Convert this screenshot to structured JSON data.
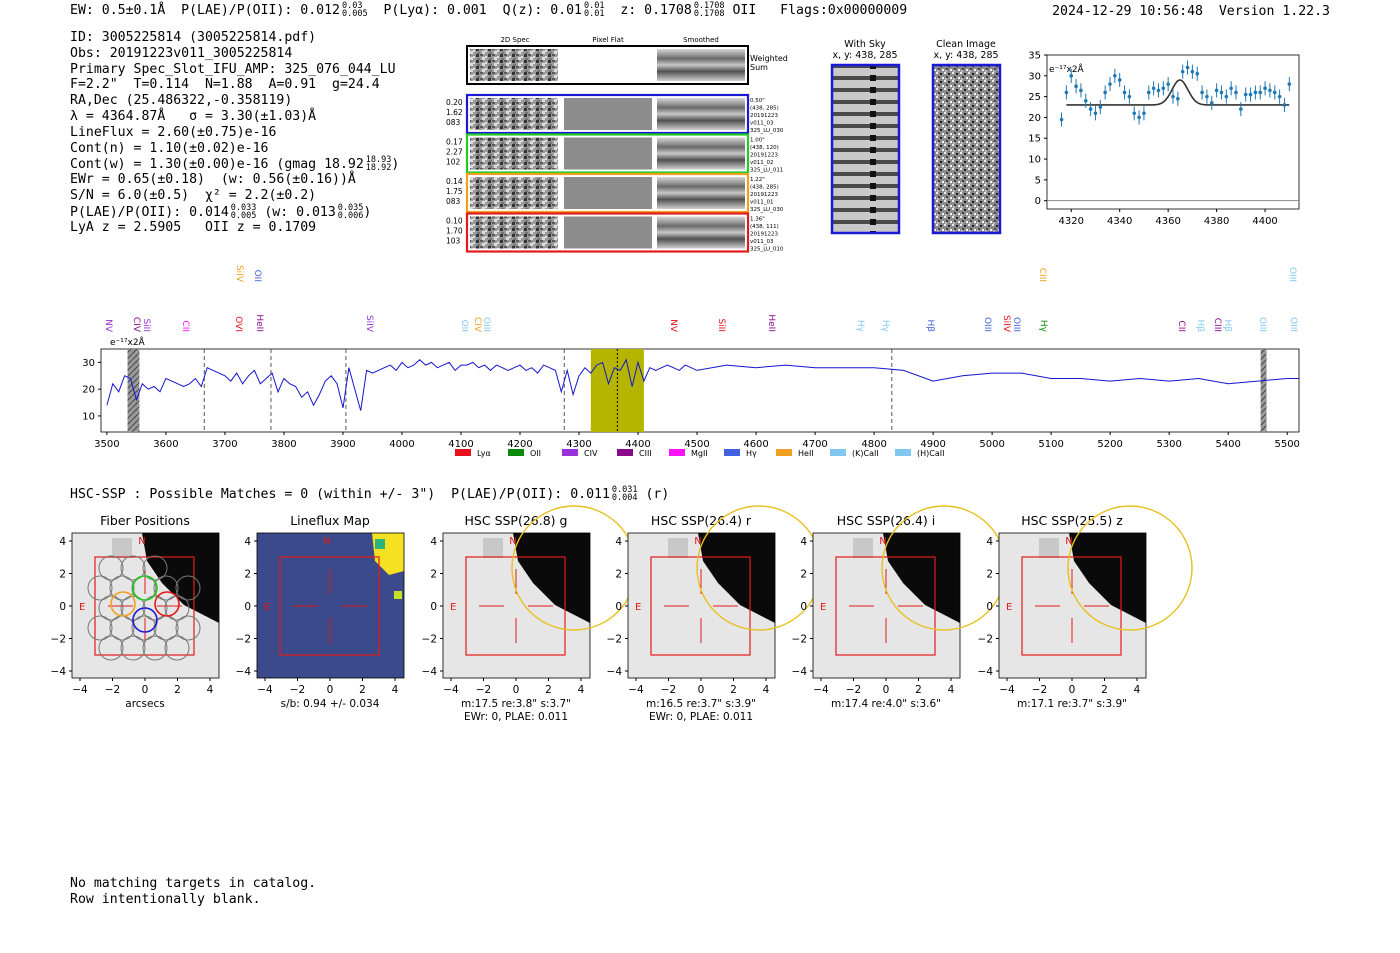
{
  "header": {
    "ew": "EW: 0.5±0.1Å",
    "plae_label": "P(LAE)/P(OII): 0.012",
    "plae_hi": "0.03",
    "plae_lo": "0.005",
    "plya": "P(Lyα): 0.001",
    "qz_label": "Q(z): 0.01",
    "qz_hi": "0.01",
    "qz_lo": "0.01",
    "z_label": "z: 0.1708",
    "z_hi": "0.1708",
    "z_lo": "0.1708",
    "z_line": "OII",
    "flags": "Flags:0x00000009",
    "timestamp": "2024-12-29 10:56:48",
    "version": "Version 1.22.3"
  },
  "info": {
    "id": "ID: 3005225814 (3005225814.pdf)",
    "obs": "Obs: 20191223v011_3005225814",
    "primary": "Primary Spec_Slot_IFU_AMP: 325_076_044_LU",
    "params": "F=2.2\"  T=0.114  N=1.88  A=0.91  g=24.4",
    "radec": "RA,Dec (25.486322,-0.358119)",
    "lambda": "λ = 4364.87Å   σ = 3.30(±1.03)Å",
    "lineflux": "LineFlux = 2.60(±0.75)e-16",
    "cont_n": "Cont(n) = 1.10(±0.02)e-16",
    "cont_w": "Cont(w) = 1.30(±0.00)e-16 (gmag 18.92",
    "gmag_hi": "18.93",
    "gmag_lo": "18.92",
    "cont_w_end": ")",
    "ewr": "EWr = 0.65(±0.18)  (w: 0.56(±0.16))Å",
    "sn": "S/N = 6.0(±0.5)  χ² = 2.2(±0.2)",
    "plae": "P(LAE)/P(OII): 0.014",
    "plae_hi": "0.033",
    "plae_lo": "0.005",
    "plae_w": " (w: 0.013",
    "plae_w_hi": "0.035",
    "plae_w_lo": "0.006",
    "plae_w_end": ")",
    "lya": "LyA z = 2.5905   OII z = 0.1709"
  },
  "cutouts": {
    "col_headers": [
      "2D Spec",
      "Pixel Flat",
      "Smoothed"
    ],
    "weighted_label": "Weighted\nSum",
    "rows": [
      {
        "color": "#1a1ad6",
        "left": [
          "0.20",
          "1.62",
          "083"
        ],
        "right": [
          "0.50\"",
          "(438, 285)",
          "20191223",
          "v011_03",
          "325_LU_030"
        ]
      },
      {
        "color": "#22cc22",
        "left": [
          "0.17",
          "2.27",
          "102"
        ],
        "right": [
          "1.00\"",
          "(438, 120)",
          "20191223",
          "v011_02",
          "325_LU_011"
        ]
      },
      {
        "color": "#f0a020",
        "left": [
          "0.14",
          "1.75",
          "083"
        ],
        "right": [
          "1.22\"",
          "(438, 285)",
          "20191223",
          "v011_01",
          "325_LU_030"
        ]
      },
      {
        "color": "#e21a1a",
        "left": [
          "0.10",
          "1.70",
          "103"
        ],
        "right": [
          "1.36\"",
          "(438, 111)",
          "20191223",
          "v011_03",
          "325_LU_010"
        ]
      }
    ],
    "with_sky_title": "With Sky",
    "with_sky_sub": "x, y: 438, 285",
    "clean_title": "Clean Image",
    "clean_sub": "x, y: 438, 285"
  },
  "fit_chart": {
    "units": "e⁻¹⁷x2Å",
    "x_ticks": [
      "4320",
      "4340",
      "4360",
      "4380",
      "4400"
    ],
    "y_ticks": [
      "0",
      "5",
      "10",
      "15",
      "20",
      "25",
      "30",
      "35"
    ]
  },
  "spectrum": {
    "units": "e⁻¹⁷x2Å",
    "x_ticks": [
      "3500",
      "3600",
      "3700",
      "3800",
      "3900",
      "4000",
      "4100",
      "4200",
      "4300",
      "4400",
      "4500",
      "4600",
      "4700",
      "4800",
      "4900",
      "5000",
      "5100",
      "5200",
      "5300",
      "5400",
      "5500"
    ],
    "y_ticks": [
      "10",
      "20",
      "30"
    ],
    "legend": [
      {
        "label": "Lyα",
        "color": "#e8101a"
      },
      {
        "label": "OII",
        "color": "#0a8a0a"
      },
      {
        "label": "CIV",
        "color": "#9b30d8"
      },
      {
        "label": "CIII",
        "color": "#8b0a8b"
      },
      {
        "label": "MgII",
        "color": "#ff10ff"
      },
      {
        "label": "Hγ",
        "color": "#4060e0"
      },
      {
        "label": "HeII",
        "color": "#f0a020"
      },
      {
        "label": "(K)CaII",
        "color": "#80c8f0"
      },
      {
        "label": "(H)CaII",
        "color": "#80c8f0"
      }
    ],
    "line_labels": [
      {
        "t": "NV",
        "c": "#9b30d8"
      },
      {
        "t": "CIV",
        "c": "#8b0a8b"
      },
      {
        "t": "SiII",
        "c": "#9b30d8"
      },
      {
        "t": "CII",
        "c": "#ff10ff"
      },
      {
        "t": "SiIV",
        "c": "#f0a020"
      },
      {
        "t": "OII",
        "c": "#4060e0"
      },
      {
        "t": "OVI",
        "c": "#e8101a"
      },
      {
        "t": "HeII",
        "c": "#8b0a8b"
      },
      {
        "t": "SiIV",
        "c": "#9b30d8"
      },
      {
        "t": "OII",
        "c": "#80c8f0"
      },
      {
        "t": "CIV",
        "c": "#f0a020"
      },
      {
        "t": "OIII",
        "c": "#80c8f0"
      },
      {
        "t": "NV",
        "c": "#e8101a"
      },
      {
        "t": "SiII",
        "c": "#e8101a"
      },
      {
        "t": "HeII",
        "c": "#8b0a8b"
      },
      {
        "t": "Hγ",
        "c": "#80c8f0"
      },
      {
        "t": "Hγ",
        "c": "#80c8f0"
      },
      {
        "t": "Hβ",
        "c": "#4060e0"
      },
      {
        "t": "OIII",
        "c": "#4060e0"
      },
      {
        "t": "SiIV",
        "c": "#e8101a"
      },
      {
        "t": "OIII",
        "c": "#4060e0"
      },
      {
        "t": "CIII",
        "c": "#f0a020"
      },
      {
        "t": "Hγ",
        "c": "#0a8a0a"
      },
      {
        "t": "CII",
        "c": "#8b0a8b"
      },
      {
        "t": "Hβ",
        "c": "#80c8f0"
      },
      {
        "t": "CIII",
        "c": "#8b0a8b"
      },
      {
        "t": "Hβ",
        "c": "#80c8f0"
      },
      {
        "t": "OIII",
        "c": "#80c8f0"
      },
      {
        "t": "OIII",
        "c": "#80c8f0"
      },
      {
        "t": "OIII",
        "c": "#80c8f0"
      }
    ]
  },
  "hsc": {
    "summary": "HSC-SSP : Possible Matches = 0 (within +/- 3\")  P(LAE)/P(OII): 0.011",
    "summary_hi": "0.031",
    "summary_lo": "0.004",
    "summary_band": "(r)",
    "panels": [
      {
        "title": "Fiber Positions",
        "xlabel": "arcsecs",
        "sub": ""
      },
      {
        "title": "Lineflux Map",
        "xlabel": "s/b: 0.94 +/- 0.034",
        "sub": ""
      },
      {
        "title": "HSC SSP(26.8) g",
        "xlabel": "m:17.5  re:3.8\"  s:3.7\"",
        "sub": "EWr: 0, PLAE: 0.011"
      },
      {
        "title": "HSC SSP(26.4) r",
        "xlabel": "m:16.5  re:3.7\"  s:3.9\"",
        "sub": "EWr: 0, PLAE: 0.011"
      },
      {
        "title": "HSC SSP(26.4) i",
        "xlabel": "m:17.4  re:4.0\"  s:3.6\"",
        "sub": ""
      },
      {
        "title": "HSC SSP(25.5) z",
        "xlabel": "m:17.1  re:3.7\"  s:3.9\"",
        "sub": ""
      }
    ],
    "ticks": [
      "−4",
      "−2",
      "0",
      "2",
      "4"
    ],
    "n_label": "N",
    "e_label": "E"
  },
  "footer": {
    "line1": "No matching targets in catalog.",
    "line2": "Row intentionally blank."
  },
  "chart_data": [
    {
      "type": "scatter",
      "title": "",
      "xlabel": "",
      "ylabel": "e⁻¹⁷x2Å",
      "xlim": [
        4310,
        4414
      ],
      "ylim": [
        -2,
        35
      ],
      "series": [
        {
          "x": [
            4316,
            4318,
            4320,
            4322,
            4324,
            4326,
            4328,
            4330,
            4332,
            4334,
            4336,
            4338,
            4340,
            4342,
            4344,
            4346,
            4348,
            4350,
            4352,
            4354,
            4356,
            4358,
            4360,
            4362,
            4364,
            4366,
            4368,
            4370,
            4372,
            4374,
            4376,
            4378,
            4380,
            4382,
            4384,
            4386,
            4388,
            4390,
            4392,
            4394,
            4396,
            4398,
            4400,
            4402,
            4404,
            4406,
            4408,
            4410
          ],
          "y": [
            19.5,
            26,
            30,
            27.5,
            26.5,
            24,
            22,
            21,
            22.5,
            26,
            28,
            30,
            29,
            26,
            25,
            21,
            20,
            21,
            26,
            27,
            26.5,
            27,
            28,
            25,
            24.5,
            31,
            32,
            31,
            30.5,
            26,
            25,
            23.5,
            26.5,
            26,
            25,
            27,
            26,
            22,
            25.5,
            25.5,
            26,
            26,
            27,
            26.5,
            26,
            25,
            23,
            28
          ],
          "err": 1.7
        },
        {
          "fit_continuum": 23,
          "fit_amplitude": 6,
          "fit_center": 4364.87,
          "fit_sigma": 3.3
        }
      ]
    },
    {
      "type": "line",
      "title": "",
      "xlabel": "",
      "ylabel": "e⁻¹⁷x2Å",
      "xlim": [
        3490,
        5520
      ],
      "ylim": [
        4,
        35
      ],
      "x": [
        3500,
        3510,
        3520,
        3530,
        3540,
        3550,
        3560,
        3570,
        3580,
        3590,
        3600,
        3610,
        3620,
        3630,
        3640,
        3650,
        3660,
        3670,
        3680,
        3690,
        3700,
        3710,
        3720,
        3730,
        3740,
        3750,
        3760,
        3770,
        3780,
        3790,
        3800,
        3810,
        3820,
        3830,
        3840,
        3850,
        3860,
        3870,
        3880,
        3890,
        3900,
        3910,
        3920,
        3930,
        3940,
        3950,
        3960,
        3970,
        3980,
        3990,
        4000,
        4010,
        4020,
        4030,
        4040,
        4050,
        4060,
        4070,
        4080,
        4090,
        4100,
        4110,
        4120,
        4130,
        4140,
        4150,
        4160,
        4170,
        4180,
        4190,
        4200,
        4210,
        4220,
        4230,
        4240,
        4250,
        4260,
        4270,
        4280,
        4290,
        4300,
        4310,
        4320,
        4330,
        4340,
        4350,
        4360,
        4370,
        4380,
        4390,
        4400,
        4410,
        4420,
        4430,
        4440,
        4450,
        4460,
        4470,
        4480,
        4490,
        4500,
        4550,
        4600,
        4650,
        4700,
        4750,
        4800,
        4850,
        4900,
        4950,
        5000,
        5050,
        5100,
        5150,
        5200,
        5250,
        5300,
        5350,
        5400,
        5450,
        5500,
        5520
      ],
      "y": [
        14,
        22,
        19,
        25,
        24,
        16,
        22,
        20,
        21,
        19,
        24,
        23,
        22,
        21,
        22,
        24,
        21,
        28,
        27,
        26,
        25,
        23,
        26,
        22,
        25,
        27,
        22,
        24,
        26,
        19,
        24,
        22,
        21,
        17,
        19,
        14,
        18,
        23,
        25,
        22,
        13,
        28,
        20,
        12,
        27,
        26,
        27,
        28,
        29,
        27,
        30,
        28,
        29,
        31,
        29,
        30,
        28,
        29,
        30,
        27,
        29,
        29,
        30,
        28,
        29,
        27,
        29,
        28,
        27,
        28,
        29,
        27,
        28,
        26,
        29,
        28,
        27,
        19,
        27,
        18,
        25,
        28,
        26,
        29,
        30,
        22,
        28,
        27,
        31,
        21,
        30,
        23,
        28,
        27,
        28,
        29,
        28,
        27,
        29,
        28,
        27,
        29,
        28,
        29,
        28,
        28,
        28,
        27,
        23,
        25,
        26,
        26,
        24,
        24,
        23,
        24,
        23,
        24,
        22,
        23,
        24,
        24
      ]
    }
  ]
}
